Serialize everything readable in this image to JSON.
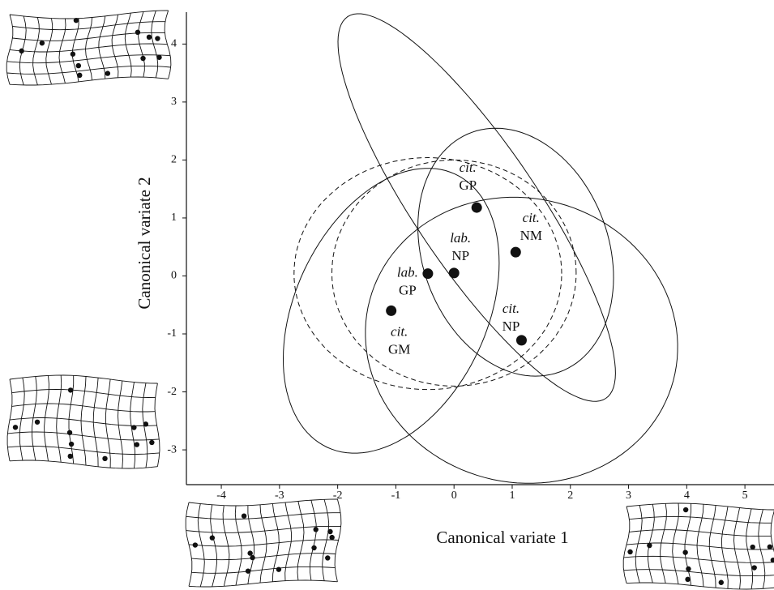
{
  "chart_data": {
    "type": "scatter",
    "x_label": "Canonical variate 1",
    "y_label": "Canonical variate 2",
    "xlim": [
      -4.6,
      5.5
    ],
    "ylim": [
      -3.6,
      4.55
    ],
    "xticks": [
      -4,
      -3,
      -2,
      -1,
      0,
      1,
      2,
      3,
      4,
      5
    ],
    "yticks": [
      -3,
      -2,
      -1,
      0,
      1,
      2,
      3,
      4
    ],
    "points": [
      {
        "prefix": "cit.",
        "label": "GP",
        "x": 0.39,
        "y": 1.18
      },
      {
        "prefix": "cit.",
        "label": "NM",
        "x": 1.06,
        "y": 0.41
      },
      {
        "prefix": "lab.",
        "label": "NP",
        "x": 0.0,
        "y": 0.05
      },
      {
        "prefix": "lab.",
        "label": "GP",
        "x": -0.45,
        "y": 0.04
      },
      {
        "prefix": "cit.",
        "label": "GM",
        "x": -1.08,
        "y": -0.6
      },
      {
        "prefix": "cit.",
        "label": "NP",
        "x": 1.16,
        "y": -1.11
      }
    ],
    "ellipses": [
      {
        "cx": 0.39,
        "cy": 1.18,
        "a": 3.97,
        "b": 1.05,
        "angle": 124,
        "dashed": false
      },
      {
        "cx": 1.06,
        "cy": 0.41,
        "a": 1.6,
        "b": 2.2,
        "angle": 20,
        "dashed": false
      },
      {
        "cx": 1.16,
        "cy": -1.11,
        "a": 2.7,
        "b": 2.45,
        "angle": -15,
        "dashed": false
      },
      {
        "cx": -1.08,
        "cy": -0.6,
        "a": 2.6,
        "b": 1.65,
        "angle": 65,
        "dashed": false
      },
      {
        "cx": -0.45,
        "cy": 0.04,
        "a": 2.3,
        "b": 2.0,
        "angle": 0,
        "dashed": true
      },
      {
        "cx": 0.0,
        "cy": 0.05,
        "a": 2.1,
        "b": 1.95,
        "angle": 0,
        "dashed": true
      }
    ]
  }
}
